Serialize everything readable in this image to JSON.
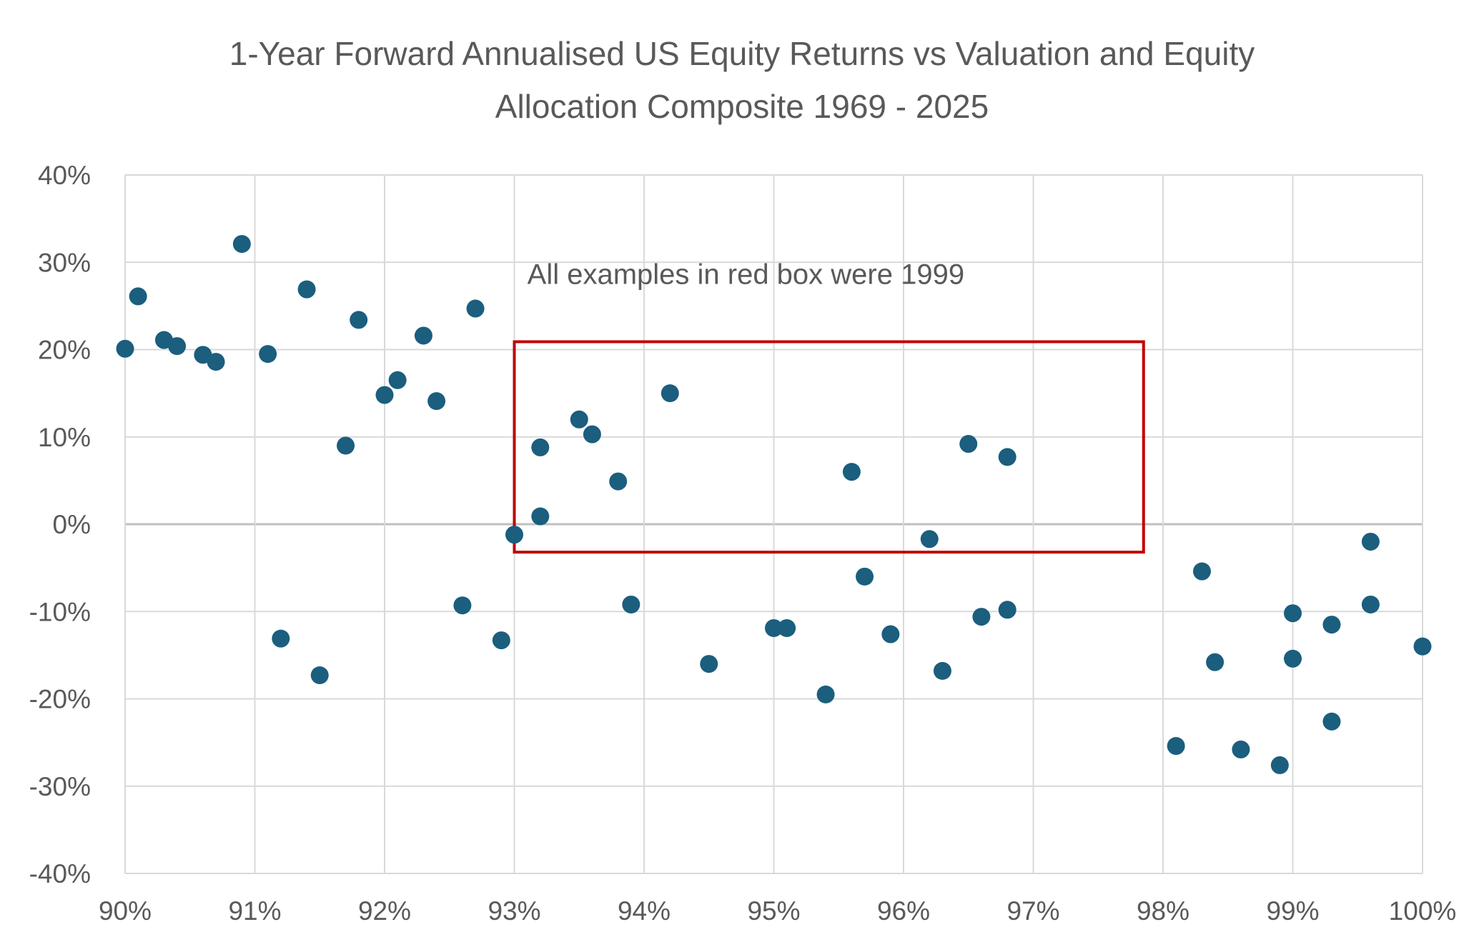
{
  "chart_data": {
    "type": "scatter",
    "title_lines": [
      "1-Year Forward Annualised US Equity Returns vs Valuation and Equity",
      "Allocation Composite 1969 - 2025"
    ],
    "xlabel": "",
    "ylabel": "",
    "xlim": [
      0.9,
      1.0
    ],
    "ylim": [
      -0.4,
      0.4
    ],
    "x_ticks": [
      0.9,
      0.91,
      0.92,
      0.93,
      0.94,
      0.95,
      0.96,
      0.97,
      0.98,
      0.99,
      1.0
    ],
    "x_tick_labels": [
      "90%",
      "91%",
      "92%",
      "93%",
      "94%",
      "95%",
      "96%",
      "97%",
      "98%",
      "99%",
      "100%"
    ],
    "y_ticks": [
      0.4,
      0.3,
      0.2,
      0.1,
      0.0,
      -0.1,
      -0.2,
      -0.3,
      -0.4
    ],
    "y_tick_labels": [
      "40%",
      "30%",
      "20%",
      "10%",
      "0%",
      "-10%",
      "-20%",
      "-30%",
      "-40%"
    ],
    "grid": true,
    "legend": "none",
    "colors": {
      "point": "#1b5e7e",
      "grid": "#d9d9d9",
      "zero_line": "#bfbfbf",
      "box": "#c00000",
      "text": "#595959"
    },
    "annotation": {
      "text": "All examples in red box were 1999",
      "x": 0.931,
      "y": 0.29
    },
    "highlight_box": {
      "x_range": [
        0.93,
        0.9785
      ],
      "y_range": [
        -0.032,
        0.209
      ]
    },
    "points": [
      {
        "x": 0.9,
        "y": 0.201
      },
      {
        "x": 0.901,
        "y": 0.261
      },
      {
        "x": 0.903,
        "y": 0.211
      },
      {
        "x": 0.904,
        "y": 0.204
      },
      {
        "x": 0.906,
        "y": 0.194
      },
      {
        "x": 0.907,
        "y": 0.186
      },
      {
        "x": 0.909,
        "y": 0.321
      },
      {
        "x": 0.911,
        "y": 0.195
      },
      {
        "x": 0.912,
        "y": -0.131
      },
      {
        "x": 0.914,
        "y": 0.269
      },
      {
        "x": 0.915,
        "y": -0.173
      },
      {
        "x": 0.917,
        "y": 0.09
      },
      {
        "x": 0.918,
        "y": 0.234
      },
      {
        "x": 0.92,
        "y": 0.148
      },
      {
        "x": 0.921,
        "y": 0.165
      },
      {
        "x": 0.923,
        "y": 0.216
      },
      {
        "x": 0.924,
        "y": 0.141
      },
      {
        "x": 0.926,
        "y": -0.093
      },
      {
        "x": 0.927,
        "y": 0.247
      },
      {
        "x": 0.929,
        "y": -0.133
      },
      {
        "x": 0.93,
        "y": -0.012
      },
      {
        "x": 0.932,
        "y": 0.088
      },
      {
        "x": 0.932,
        "y": 0.009
      },
      {
        "x": 0.935,
        "y": 0.12
      },
      {
        "x": 0.936,
        "y": 0.103
      },
      {
        "x": 0.938,
        "y": 0.049
      },
      {
        "x": 0.939,
        "y": -0.092
      },
      {
        "x": 0.942,
        "y": 0.15
      },
      {
        "x": 0.945,
        "y": -0.16
      },
      {
        "x": 0.95,
        "y": -0.119
      },
      {
        "x": 0.951,
        "y": -0.119
      },
      {
        "x": 0.954,
        "y": -0.195
      },
      {
        "x": 0.956,
        "y": 0.06
      },
      {
        "x": 0.957,
        "y": -0.06
      },
      {
        "x": 0.959,
        "y": -0.126
      },
      {
        "x": 0.962,
        "y": -0.017
      },
      {
        "x": 0.963,
        "y": -0.168
      },
      {
        "x": 0.965,
        "y": 0.092
      },
      {
        "x": 0.966,
        "y": -0.106
      },
      {
        "x": 0.968,
        "y": 0.077
      },
      {
        "x": 0.968,
        "y": -0.098
      },
      {
        "x": 0.981,
        "y": -0.254
      },
      {
        "x": 0.983,
        "y": -0.054
      },
      {
        "x": 0.984,
        "y": -0.158
      },
      {
        "x": 0.986,
        "y": -0.258
      },
      {
        "x": 0.989,
        "y": -0.276
      },
      {
        "x": 0.99,
        "y": -0.102
      },
      {
        "x": 0.99,
        "y": -0.154
      },
      {
        "x": 0.993,
        "y": -0.115
      },
      {
        "x": 0.993,
        "y": -0.226
      },
      {
        "x": 0.996,
        "y": -0.02
      },
      {
        "x": 0.996,
        "y": -0.092
      },
      {
        "x": 1.0,
        "y": -0.14
      }
    ]
  }
}
